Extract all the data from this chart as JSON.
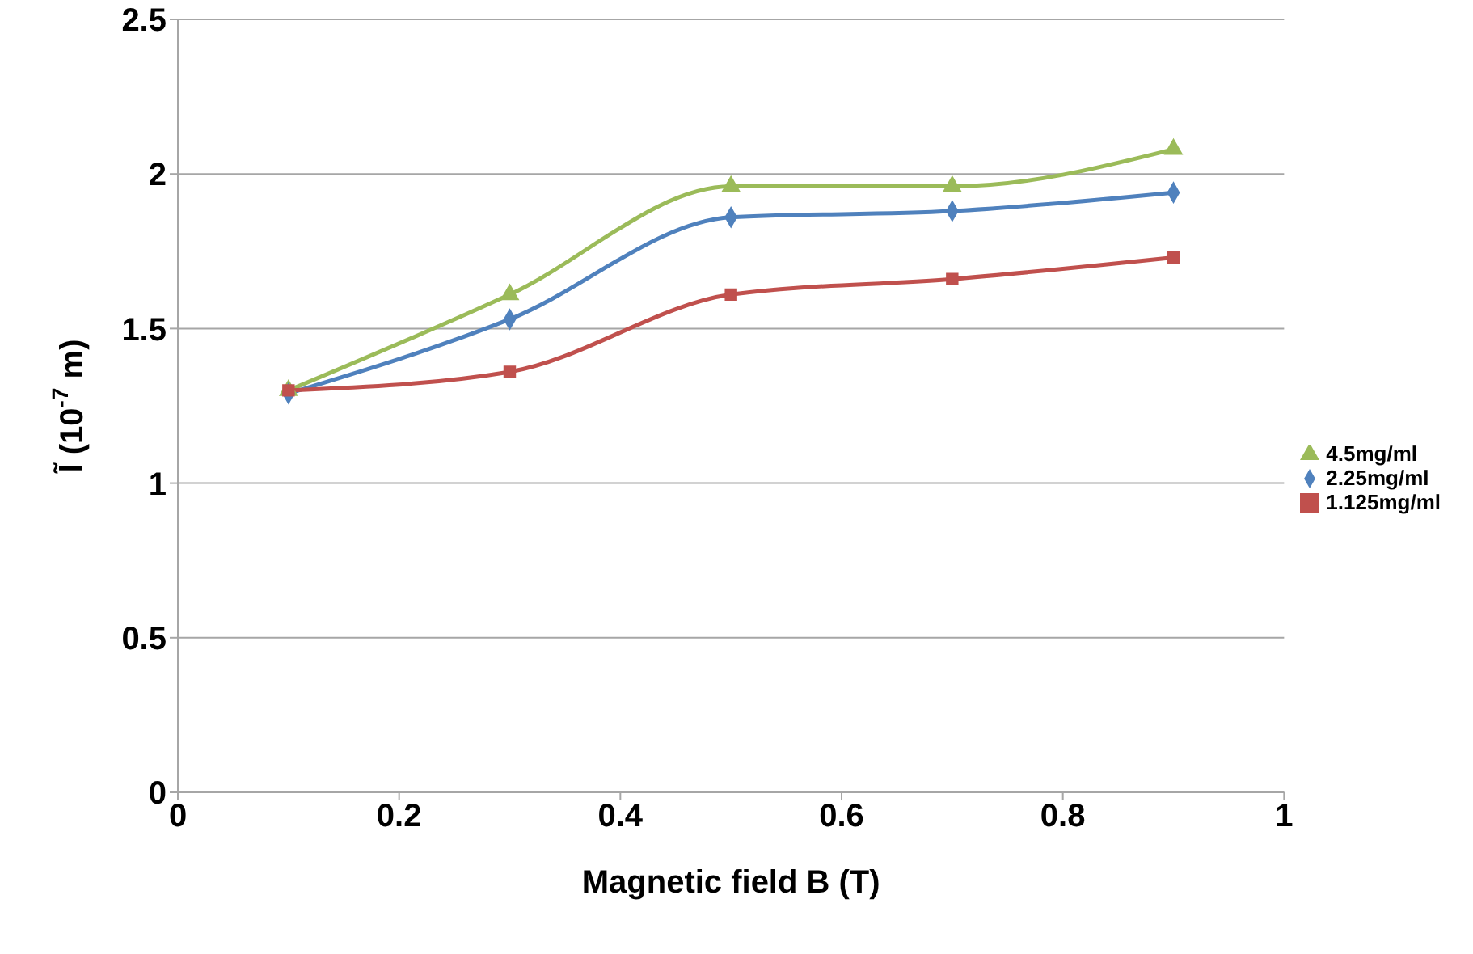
{
  "chart_data": {
    "type": "line",
    "xlabel": "Magnetic field B (T)",
    "ylabel": "l̃  (10$^{-7}$ m)",
    "x": [
      0.1,
      0.3,
      0.5,
      0.7,
      0.9
    ],
    "series": [
      {
        "name": "4.5mg/ml",
        "color": "#9bbb59",
        "marker": "triangle",
        "values": [
          1.3,
          1.61,
          1.96,
          1.96,
          2.08
        ]
      },
      {
        "name": "2.25mg/ml",
        "color": "#4f81bd",
        "marker": "diamond",
        "values": [
          1.29,
          1.53,
          1.86,
          1.88,
          1.94
        ]
      },
      {
        "name": "1.125mg/ml",
        "color": "#c0504d",
        "marker": "square",
        "values": [
          1.3,
          1.36,
          1.61,
          1.66,
          1.73
        ]
      }
    ],
    "xlim": [
      0,
      1
    ],
    "xticks": [
      0,
      0.2,
      0.4,
      0.6,
      0.8,
      1
    ],
    "ylim": [
      0,
      2.5
    ],
    "yticks": [
      0,
      0.5,
      1,
      1.5,
      2,
      2.5
    ],
    "grid": "y",
    "legend": "right",
    "line_style": "solid"
  }
}
